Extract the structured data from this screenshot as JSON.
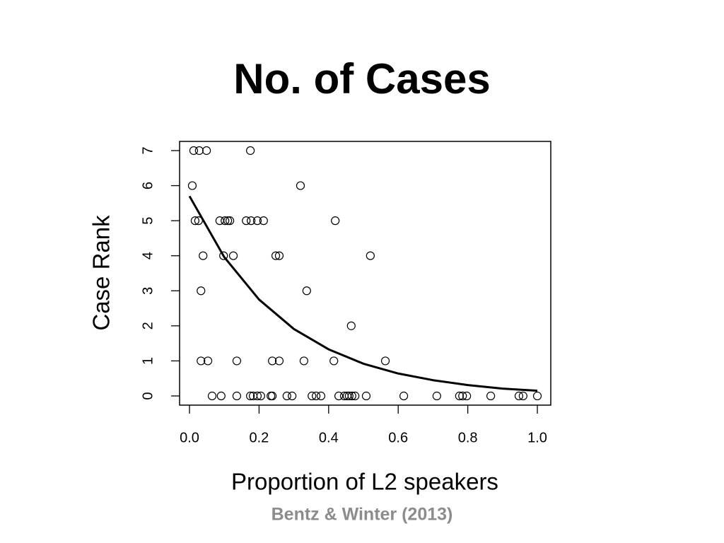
{
  "title": "No. of Cases",
  "caption": "Bentz & Winter (2013)",
  "chart_data": {
    "type": "scatter",
    "xlabel": "Proportion of L2 speakers",
    "ylabel": "Case Rank",
    "xlim": [
      -0.0285,
      1.0386
    ],
    "ylim": [
      -0.262,
      7.262
    ],
    "xticks": [
      {
        "value": 0,
        "label": "0.0"
      },
      0.2,
      0.4,
      0.6,
      0.8,
      {
        "value": 1,
        "label": "1.0"
      }
    ],
    "yticks": [
      0,
      1,
      2,
      3,
      4,
      5,
      6,
      7
    ],
    "series": [
      {
        "type": "scatter",
        "color": "#000000",
        "x": [
          0.012,
          0.028,
          0.049,
          0.175,
          0.008,
          0.319,
          0.016,
          0.026,
          0.087,
          0.102,
          0.11,
          0.116,
          0.163,
          0.177,
          0.195,
          0.213,
          0.419,
          0.039,
          0.098,
          0.126,
          0.248,
          0.258,
          0.52,
          0.033,
          0.337,
          0.465,
          0.033,
          0.053,
          0.136,
          0.238,
          0.258,
          0.329,
          0.415,
          0.563,
          0.065,
          0.091,
          0.136,
          0.175,
          0.183,
          0.195,
          0.205,
          0.234,
          0.238,
          0.28,
          0.295,
          0.352,
          0.364,
          0.378,
          0.429,
          0.445,
          0.453,
          0.459,
          0.467,
          0.476,
          0.508,
          0.616,
          0.711,
          0.776,
          0.785,
          0.797,
          0.866,
          0.947,
          0.959,
          1.0
        ],
        "values": [
          7,
          7,
          7,
          7,
          6,
          6,
          5,
          5,
          5,
          5,
          5,
          5,
          5,
          5,
          5,
          5,
          5,
          4,
          4,
          4,
          4,
          4,
          4,
          3,
          3,
          2,
          1,
          1,
          1,
          1,
          1,
          1,
          1,
          1,
          0,
          0,
          0,
          0,
          0,
          0,
          0,
          0,
          0,
          0,
          0,
          0,
          0,
          0,
          0,
          0,
          0,
          0,
          0,
          0,
          0,
          0,
          0,
          0,
          0,
          0,
          0,
          0,
          0,
          0
        ]
      },
      {
        "type": "line",
        "color": "#000000",
        "x": [
          0,
          0.1,
          0.2,
          0.3,
          0.4,
          0.5,
          0.6,
          0.7,
          0.8,
          0.9,
          1.0
        ],
        "values": [
          5.7,
          3.96,
          2.75,
          1.91,
          1.33,
          0.92,
          0.64,
          0.45,
          0.31,
          0.21,
          0.15
        ]
      }
    ]
  }
}
